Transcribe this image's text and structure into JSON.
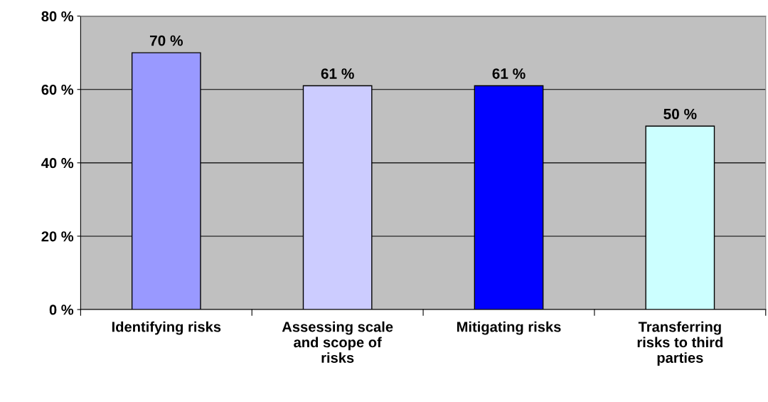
{
  "chart_data": {
    "type": "bar",
    "categories": [
      "Identifying risks",
      "Assessing scale and scope of risks",
      "Mitigating risks",
      "Transferring risks to third parties"
    ],
    "values": [
      70,
      61,
      61,
      50
    ],
    "colors": [
      "#9999ff",
      "#ccccff",
      "#0000ff",
      "#ccffff"
    ],
    "value_labels": [
      "70 %",
      "61 %",
      "61 %",
      "50 %"
    ],
    "ylim": [
      0,
      80
    ],
    "yticks": [
      {
        "value": 0,
        "label": "0 %"
      },
      {
        "value": 20,
        "label": "20 %"
      },
      {
        "value": 40,
        "label": "40 %"
      },
      {
        "value": 60,
        "label": "60 %"
      },
      {
        "value": 80,
        "label": "80 %"
      }
    ],
    "grid": "y"
  }
}
